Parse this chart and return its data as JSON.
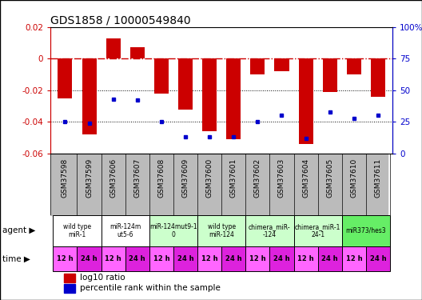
{
  "title": "GDS1858 / 10000549840",
  "samples": [
    "GSM37598",
    "GSM37599",
    "GSM37606",
    "GSM37607",
    "GSM37608",
    "GSM37609",
    "GSM37600",
    "GSM37601",
    "GSM37602",
    "GSM37603",
    "GSM37604",
    "GSM37605",
    "GSM37610",
    "GSM37611"
  ],
  "log10_ratio": [
    -0.025,
    -0.048,
    0.013,
    0.007,
    -0.022,
    -0.032,
    -0.046,
    -0.051,
    -0.01,
    -0.008,
    -0.054,
    -0.021,
    -0.01,
    -0.024
  ],
  "percentile_rank": [
    25,
    24,
    43,
    42,
    25,
    13,
    13,
    13,
    25,
    30,
    12,
    33,
    28,
    30
  ],
  "ylim_left": [
    -0.06,
    0.02
  ],
  "ylim_right": [
    0,
    100
  ],
  "yticks_left": [
    -0.06,
    -0.04,
    -0.02,
    0.0,
    0.02
  ],
  "yticks_right": [
    0,
    25,
    50,
    75,
    100
  ],
  "bar_color": "#cc0000",
  "dot_color": "#0000cc",
  "zero_line_color": "#cc0000",
  "grid_color": "#000000",
  "agent_groups": [
    {
      "label": "wild type\nmiR-1",
      "cols": [
        0,
        1
      ],
      "color": "#ffffff"
    },
    {
      "label": "miR-124m\nut5-6",
      "cols": [
        2,
        3
      ],
      "color": "#ffffff"
    },
    {
      "label": "miR-124mut9-1\n0",
      "cols": [
        4,
        5
      ],
      "color": "#ccffcc"
    },
    {
      "label": "wild type\nmiR-124",
      "cols": [
        6,
        7
      ],
      "color": "#ccffcc"
    },
    {
      "label": "chimera_miR-\n-124",
      "cols": [
        8,
        9
      ],
      "color": "#ccffcc"
    },
    {
      "label": "chimera_miR-1\n24-1",
      "cols": [
        10,
        11
      ],
      "color": "#ccffcc"
    },
    {
      "label": "miR373/hes3",
      "cols": [
        12,
        13
      ],
      "color": "#66ee66"
    }
  ],
  "time_labels": [
    "12 h",
    "24 h",
    "12 h",
    "24 h",
    "12 h",
    "24 h",
    "12 h",
    "24 h",
    "12 h",
    "24 h",
    "12 h",
    "24 h",
    "12 h",
    "24 h"
  ],
  "time_color_odd": "#ff66ff",
  "time_color_even": "#dd22dd",
  "sample_bg_color": "#bbbbbb",
  "legend_bar_label": "log10 ratio",
  "legend_dot_label": "percentile rank within the sample",
  "figure_width": 5.28,
  "figure_height": 3.75,
  "dpi": 100
}
